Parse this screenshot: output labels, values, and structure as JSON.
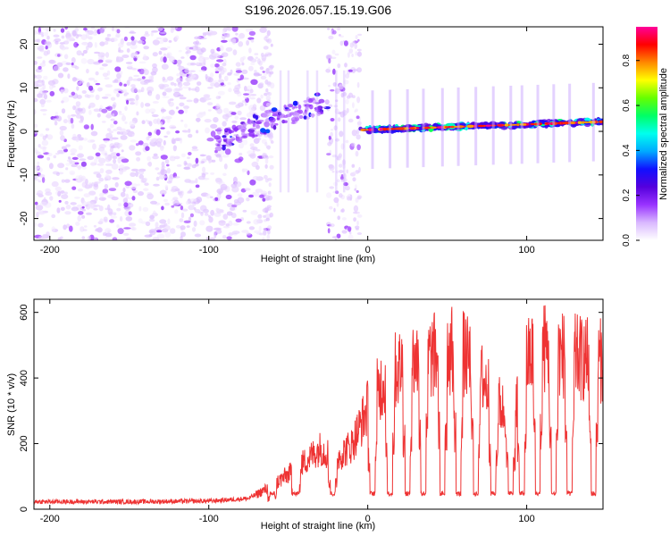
{
  "title": "S196.2026.057.15.19.G06",
  "chart_data": [
    {
      "type": "heatmap",
      "name": "spectrogram",
      "xlabel": "Height of straight line (km)",
      "ylabel": "Frequency (Hz)",
      "xlim": [
        -210,
        148
      ],
      "ylim": [
        -25,
        24
      ],
      "xticks": [
        -200,
        -100,
        0,
        100
      ],
      "xtick_labels": [
        "-200",
        "-100",
        "0",
        "100"
      ],
      "yticks": [
        -20,
        -10,
        0,
        10,
        20
      ],
      "ytick_labels": [
        "-20",
        "-10",
        "0",
        "10",
        "20"
      ],
      "colorbar": {
        "label": "Normalized spectral amplitude",
        "range": [
          0,
          0.95
        ],
        "ticks": [
          0,
          0.2,
          0.4,
          0.6,
          0.8
        ],
        "tick_labels": [
          "0.0",
          "0.2",
          "0.4",
          "0.6",
          "0.8"
        ],
        "colormap": [
          "#ffffff",
          "#d9b8ff",
          "#9933ff",
          "#5500dd",
          "#1010ff",
          "#00aaff",
          "#00ffee",
          "#00ff66",
          "#66ff00",
          "#ffff00",
          "#ff8800",
          "#ff0000",
          "#ff0099"
        ]
      },
      "segments": [
        {
          "label": "noise",
          "x_range": [
            -210,
            -62
          ]
        },
        {
          "label": "rising tone",
          "x_range": [
            -95,
            -25
          ]
        },
        {
          "label": "gap",
          "x_range": [
            -62,
            -25
          ]
        },
        {
          "label": "noise",
          "x_range": [
            -25,
            -5
          ]
        },
        {
          "label": "line",
          "x_range": [
            -5,
            148
          ],
          "freq_start": 0,
          "freq_end": 2
        }
      ]
    },
    {
      "type": "line",
      "name": "snr",
      "color": "#ee3333",
      "xlabel": "Height of straight line (km)",
      "ylabel": "SNR (10 * v/v)",
      "xlim": [
        -210,
        148
      ],
      "ylim": [
        0,
        640
      ],
      "xticks": [
        -200,
        -100,
        0,
        100
      ],
      "xtick_labels": [
        "-200",
        "-100",
        "0",
        "100"
      ],
      "yticks": [
        0,
        200,
        400,
        600
      ],
      "ytick_labels": [
        "0",
        "200",
        "400",
        "600"
      ],
      "envelope_x": [
        -210,
        -150,
        -100,
        -75,
        -60,
        -45,
        -30,
        -20,
        -10,
        0,
        10,
        20,
        30,
        40,
        50,
        60,
        70,
        80,
        90,
        100,
        110,
        120,
        130,
        140,
        148
      ],
      "envelope_y": [
        20,
        20,
        22,
        30,
        70,
        120,
        180,
        150,
        190,
        300,
        380,
        420,
        440,
        450,
        470,
        460,
        400,
        330,
        260,
        440,
        480,
        460,
        450,
        440,
        440
      ],
      "dips_x": [
        -60,
        -45,
        -22,
        3,
        14,
        25,
        35,
        47,
        57,
        68,
        79,
        90,
        97,
        107,
        117,
        127,
        142
      ],
      "dip_value": 40
    }
  ]
}
